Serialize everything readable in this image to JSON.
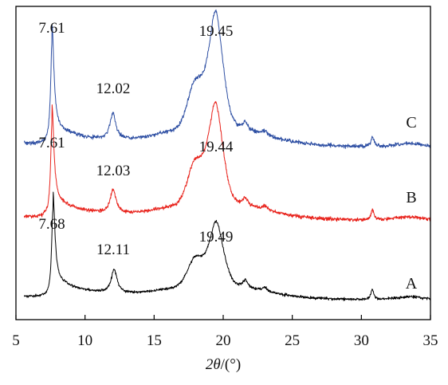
{
  "chart_data": {
    "type": "line",
    "title": "",
    "xlabel_parts": {
      "symbol": "2θ",
      "unit": "/(°)"
    },
    "ylabel": "",
    "xlim": [
      5,
      35
    ],
    "xticks": [
      5,
      10,
      15,
      20,
      25,
      30,
      35
    ],
    "y_ticks_shown": false,
    "grid": false,
    "legend": "none (series labeled directly at right)",
    "series": [
      {
        "name": "A",
        "color": "#000000",
        "peaks": [
          {
            "x": 7.68,
            "label": "7.68"
          },
          {
            "x": 12.11,
            "label": "12.11"
          },
          {
            "x": 19.49,
            "label": "19.49"
          }
        ]
      },
      {
        "name": "B",
        "color": "#e8221b",
        "peaks": [
          {
            "x": 7.61,
            "label": "7.61"
          },
          {
            "x": 12.03,
            "label": "12.03"
          },
          {
            "x": 19.44,
            "label": "19.44"
          }
        ]
      },
      {
        "name": "C",
        "color": "#2e4fa3",
        "peaks": [
          {
            "x": 7.61,
            "label": "7.61"
          },
          {
            "x": 12.02,
            "label": "12.02"
          },
          {
            "x": 19.45,
            "label": "19.45"
          }
        ]
      }
    ]
  }
}
